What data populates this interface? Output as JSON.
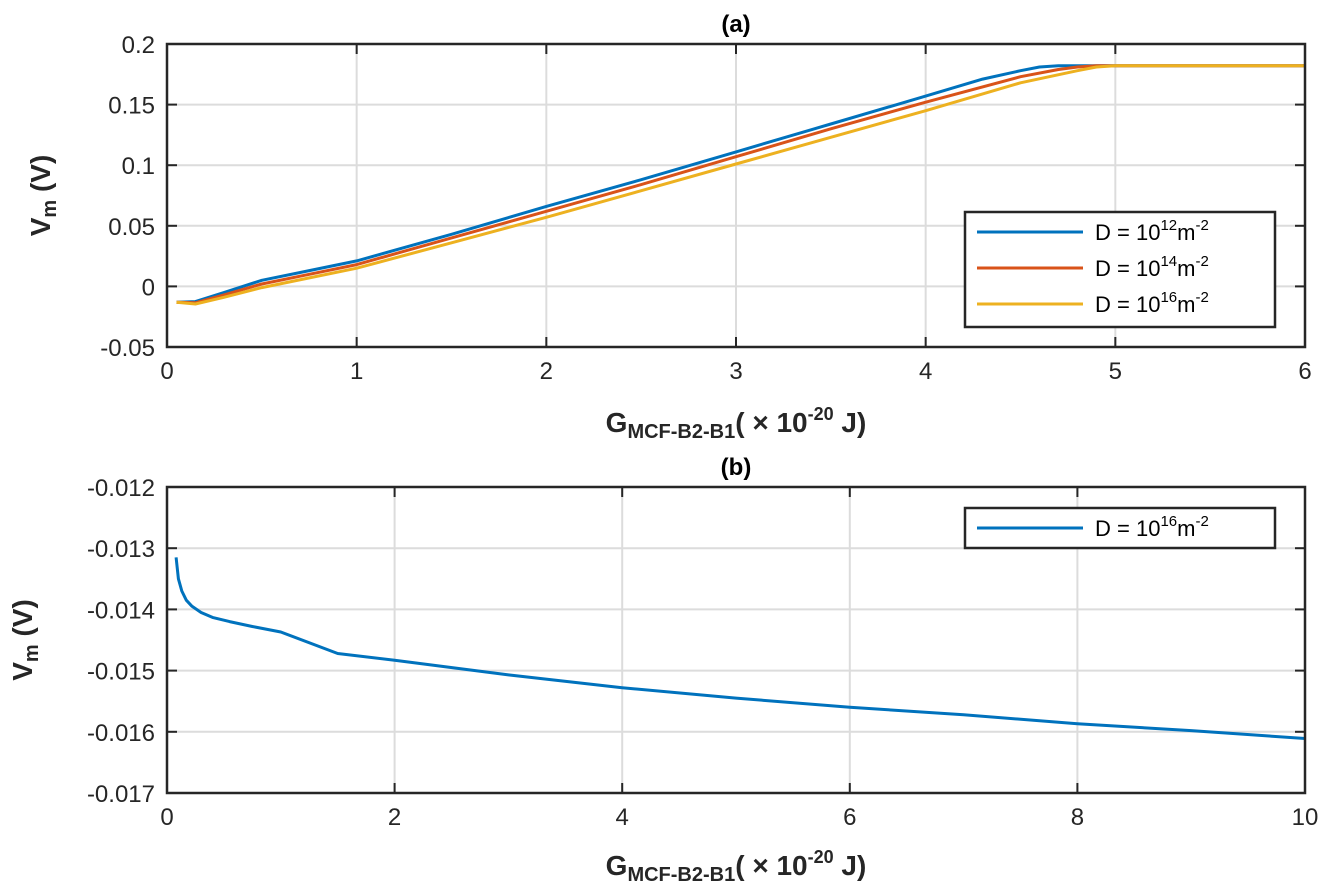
{
  "chart_data": [
    {
      "type": "line",
      "title": "(a)",
      "xlabel": {
        "main": "G",
        "sub": "MCF-B2-B1",
        "pre": "( ×  10",
        "sup": "-20",
        "post": "  J)"
      },
      "ylabel": {
        "main": "V",
        "sub": "m",
        "post": " (V)"
      },
      "xlim": [
        0,
        6
      ],
      "ylim": [
        -0.05,
        0.2
      ],
      "xticks": [
        0,
        1,
        2,
        3,
        4,
        5,
        6
      ],
      "xtick_labels": [
        "0",
        "1",
        "2",
        "3",
        "4",
        "5",
        "6"
      ],
      "yticks": [
        -0.05,
        0,
        0.05,
        0.1,
        0.15,
        0.2
      ],
      "ytick_labels": [
        "-0.05",
        "0",
        "0.05",
        "0.1",
        "0.15",
        "0.2"
      ],
      "grid": true,
      "legend_position": "right",
      "series": [
        {
          "name": "D  =  10",
          "sup": "12",
          "unit": "m",
          "unit_sup": "-2",
          "color": "#0072BD",
          "x": [
            0.05,
            0.15,
            0.3,
            0.5,
            0.75,
            1.0,
            1.5,
            2.0,
            2.5,
            3.0,
            3.5,
            4.0,
            4.3,
            4.5,
            4.6,
            4.7,
            4.8,
            5.0,
            5.5,
            6.0
          ],
          "y": [
            -0.013,
            -0.0125,
            -0.005,
            0.005,
            0.013,
            0.021,
            0.043,
            0.066,
            0.088,
            0.111,
            0.134,
            0.157,
            0.171,
            0.178,
            0.181,
            0.182,
            0.182,
            0.182,
            0.182,
            0.182
          ]
        },
        {
          "name": "D  =  10",
          "sup": "14",
          "unit": "m",
          "unit_sup": "-2",
          "color": "#D95319",
          "x": [
            0.05,
            0.15,
            0.3,
            0.5,
            0.75,
            1.0,
            1.5,
            2.0,
            2.5,
            3.0,
            3.5,
            4.0,
            4.5,
            4.7,
            4.8,
            4.9,
            5.0,
            5.5,
            6.0
          ],
          "y": [
            -0.013,
            -0.0135,
            -0.007,
            0.002,
            0.01,
            0.018,
            0.04,
            0.062,
            0.084,
            0.107,
            0.13,
            0.152,
            0.173,
            0.179,
            0.181,
            0.182,
            0.182,
            0.182,
            0.182
          ]
        },
        {
          "name": "D  =  10",
          "sup": "16",
          "unit": "m",
          "unit_sup": "-2",
          "color": "#EDB120",
          "x": [
            0.05,
            0.15,
            0.3,
            0.5,
            0.75,
            1.0,
            1.5,
            2.0,
            2.5,
            3.0,
            3.5,
            4.0,
            4.5,
            4.8,
            4.9,
            5.0,
            5.5,
            6.0
          ],
          "y": [
            -0.013,
            -0.0145,
            -0.009,
            -0.001,
            0.007,
            0.015,
            0.036,
            0.057,
            0.079,
            0.101,
            0.123,
            0.145,
            0.168,
            0.178,
            0.181,
            0.182,
            0.182,
            0.182
          ]
        }
      ]
    },
    {
      "type": "line",
      "title": "(b)",
      "xlabel": {
        "main": "G",
        "sub": "MCF-B2-B1",
        "pre": "( ×  10",
        "sup": "-20",
        "post": "  J)"
      },
      "ylabel": {
        "main": "V",
        "sub": "m",
        "post": " (V)"
      },
      "xlim": [
        0,
        10
      ],
      "ylim": [
        -0.017,
        -0.012
      ],
      "xticks": [
        0,
        2,
        4,
        6,
        8,
        10
      ],
      "xtick_labels": [
        "0",
        "2",
        "4",
        "6",
        "8",
        "10"
      ],
      "yticks": [
        -0.017,
        -0.016,
        -0.015,
        -0.014,
        -0.013,
        -0.012
      ],
      "ytick_labels": [
        "-0.017",
        "-0.016",
        "-0.015",
        "-0.014",
        "-0.013",
        "-0.012"
      ],
      "grid": true,
      "legend_position": "top-right",
      "series": [
        {
          "name": "D  =  10",
          "sup": "16",
          "unit": "m",
          "unit_sup": "-2",
          "color": "#0072BD",
          "x": [
            0.08,
            0.1,
            0.13,
            0.17,
            0.22,
            0.3,
            0.4,
            0.55,
            0.75,
            1.0,
            1.5,
            2.0,
            3.0,
            4.0,
            5.0,
            6.0,
            7.0,
            8.0,
            9.0,
            10.0
          ],
          "y": [
            -0.01315,
            -0.0135,
            -0.0137,
            -0.01385,
            -0.01395,
            -0.01405,
            -0.01413,
            -0.0142,
            -0.01428,
            -0.01437,
            -0.01472,
            -0.01483,
            -0.01507,
            -0.01528,
            -0.01545,
            -0.0156,
            -0.01572,
            -0.01587,
            -0.01598,
            -0.01611
          ]
        }
      ]
    }
  ]
}
